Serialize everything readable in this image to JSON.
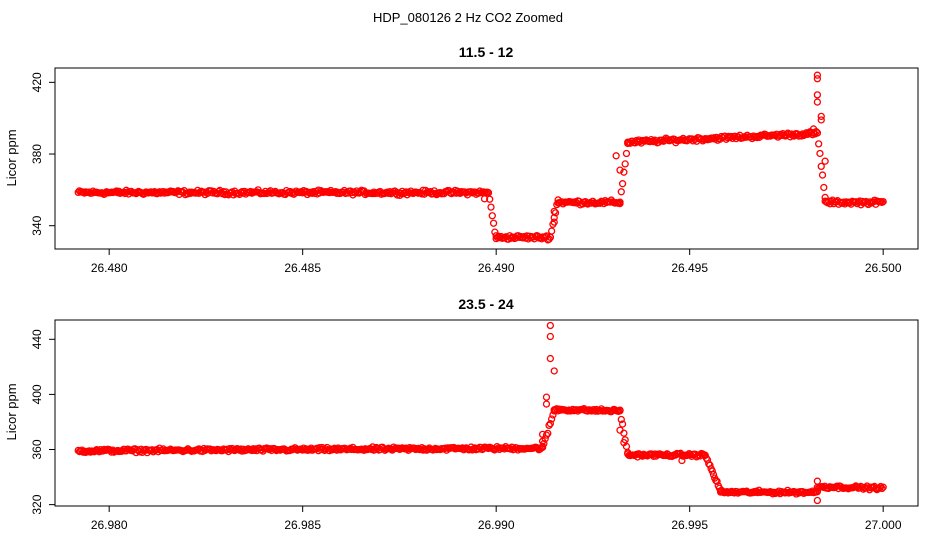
{
  "figure": {
    "title": "HDP_080126  2 Hz CO2 Zoomed"
  },
  "chart_data": [
    {
      "type": "scatter",
      "title": "11.5 - 12",
      "xlabel": "",
      "ylabel": "Licor ppm",
      "xlim": [
        26.4786,
        26.5009
      ],
      "ylim": [
        327,
        428
      ],
      "xticks": [
        "26.480",
        "26.485",
        "26.490",
        "26.495",
        "26.500"
      ],
      "xtick_values": [
        26.48,
        26.485,
        26.49,
        26.495,
        26.5
      ],
      "yticks": [
        "340",
        "380",
        "420"
      ],
      "ytick_values": [
        340,
        380,
        420
      ],
      "grid": false,
      "legend": "none",
      "marker": "open-circle",
      "color": "#ff0000",
      "segments": [
        {
          "x0": 26.4792,
          "x1": 26.4898,
          "y0": 358.5,
          "y1": 358.5,
          "noise": 0.8
        },
        {
          "x0": 26.4898,
          "x1": 26.49,
          "y0": 358.5,
          "y1": 333,
          "noise": 0.8
        },
        {
          "x0": 26.49,
          "x1": 26.4914,
          "y0": 333.5,
          "y1": 333.5,
          "noise": 0.8
        },
        {
          "x0": 26.4914,
          "x1": 26.4916,
          "y0": 333.5,
          "y1": 355,
          "noise": 0.8
        },
        {
          "x0": 26.4916,
          "x1": 26.4932,
          "y0": 353,
          "y1": 353,
          "noise": 0.8
        },
        {
          "x0": 26.4932,
          "x1": 26.4934,
          "y0": 353,
          "y1": 386,
          "noise": 0.8
        },
        {
          "x0": 26.4934,
          "x1": 26.4983,
          "y0": 386.5,
          "y1": 391.5,
          "noise": 0.8
        },
        {
          "x0": 26.4983,
          "x1": 26.4985,
          "y0": 391.5,
          "y1": 356,
          "noise": 0.8
        },
        {
          "x0": 26.4985,
          "x1": 26.5,
          "y0": 353,
          "y1": 353,
          "noise": 0.8
        }
      ],
      "outliers": [
        {
          "x": 26.4983,
          "y": 424
        },
        {
          "x": 26.4983,
          "y": 422
        },
        {
          "x": 26.4983,
          "y": 413
        },
        {
          "x": 26.4983,
          "y": 409
        },
        {
          "x": 26.4984,
          "y": 401
        },
        {
          "x": 26.4984,
          "y": 399
        },
        {
          "x": 26.4982,
          "y": 394
        },
        {
          "x": 26.4985,
          "y": 376
        },
        {
          "x": 26.4931,
          "y": 379
        },
        {
          "x": 26.4932,
          "y": 371
        },
        {
          "x": 26.4915,
          "y": 342
        },
        {
          "x": 26.4915,
          "y": 348
        },
        {
          "x": 26.4897,
          "y": 355
        }
      ]
    },
    {
      "type": "scatter",
      "title": "23.5 - 24",
      "xlabel": "",
      "ylabel": "Licor ppm",
      "xlim": [
        26.9786,
        27.0009
      ],
      "ylim": [
        319,
        454
      ],
      "xticks": [
        "26.980",
        "26.985",
        "26.990",
        "26.995",
        "27.000"
      ],
      "xtick_values": [
        26.98,
        26.985,
        26.99,
        26.995,
        27.0
      ],
      "yticks": [
        "320",
        "360",
        "400",
        "440"
      ],
      "ytick_values": [
        320,
        360,
        400,
        440
      ],
      "grid": false,
      "legend": "none",
      "marker": "open-circle",
      "color": "#ff0000",
      "segments": [
        {
          "x0": 26.9792,
          "x1": 26.9912,
          "y0": 359,
          "y1": 361,
          "noise": 0.9
        },
        {
          "x0": 26.9912,
          "x1": 26.9915,
          "y0": 361,
          "y1": 388,
          "noise": 1.2
        },
        {
          "x0": 26.9915,
          "x1": 26.9932,
          "y0": 389,
          "y1": 388,
          "noise": 0.8
        },
        {
          "x0": 26.9932,
          "x1": 26.9934,
          "y0": 388,
          "y1": 357,
          "noise": 0.8
        },
        {
          "x0": 26.9934,
          "x1": 26.9954,
          "y0": 356,
          "y1": 356,
          "noise": 0.8
        },
        {
          "x0": 26.9954,
          "x1": 26.9958,
          "y0": 356,
          "y1": 330,
          "noise": 0.8
        },
        {
          "x0": 26.9958,
          "x1": 26.9983,
          "y0": 329,
          "y1": 329,
          "noise": 0.8
        },
        {
          "x0": 26.9983,
          "x1": 27.0,
          "y0": 333,
          "y1": 332,
          "noise": 0.8
        }
      ],
      "outliers": [
        {
          "x": 26.9914,
          "y": 450
        },
        {
          "x": 26.9914,
          "y": 442
        },
        {
          "x": 26.9914,
          "y": 426
        },
        {
          "x": 26.9915,
          "y": 417
        },
        {
          "x": 26.9913,
          "y": 398
        },
        {
          "x": 26.9913,
          "y": 393
        },
        {
          "x": 26.9912,
          "y": 371
        },
        {
          "x": 26.9912,
          "y": 366
        },
        {
          "x": 26.9932,
          "y": 374
        },
        {
          "x": 26.9933,
          "y": 365
        },
        {
          "x": 26.9983,
          "y": 337
        },
        {
          "x": 26.9983,
          "y": 323
        },
        {
          "x": 26.9948,
          "y": 352
        }
      ]
    }
  ]
}
